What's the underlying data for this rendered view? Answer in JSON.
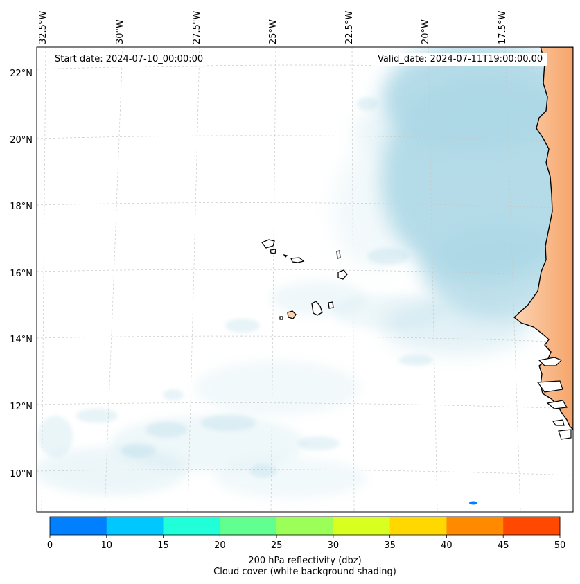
{
  "header": {
    "start_label": "Start date: 2024-07-10_00:00:00",
    "valid_label": "Valid_date: 2024-07-11T19:00:00.00"
  },
  "axes": {
    "lon_labels": [
      "32.5°W",
      "30°W",
      "27.5°W",
      "25°W",
      "22.5°W",
      "20°W",
      "17.5°W"
    ],
    "lat_labels": [
      "22°N",
      "20°N",
      "18°N",
      "16°N",
      "14°N",
      "12°N",
      "10°N"
    ]
  },
  "colorbar": {
    "colors": [
      "#0080ff",
      "#00c8ff",
      "#20ffd8",
      "#60ff90",
      "#9cff58",
      "#d8ff20",
      "#ffd800",
      "#ff8a00",
      "#ff4800"
    ],
    "tick_labels": [
      "0",
      "10",
      "15",
      "20",
      "25",
      "30",
      "35",
      "40",
      "45",
      "50"
    ],
    "label_line1": "200 hPa reflectivity (dbz)",
    "label_line2": "Cloud cover (white background shading)"
  },
  "colors": {
    "cloud_shading": "#add8e6",
    "land_shading": "#f4a261",
    "coastline": "#000000"
  }
}
